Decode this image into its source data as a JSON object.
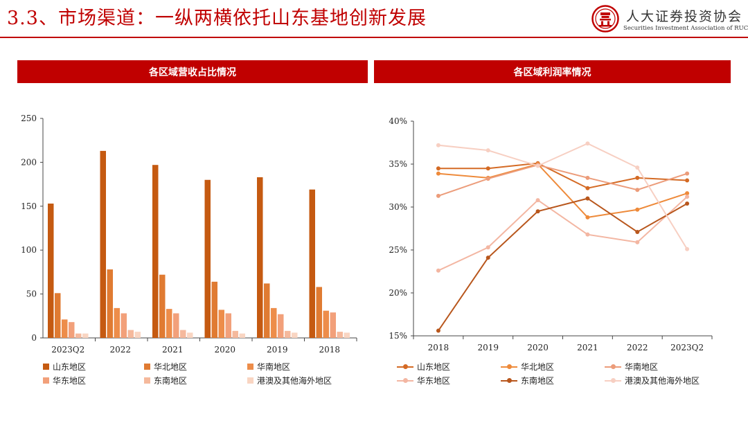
{
  "header": {
    "title": "3.3、市场渠道：一纵两横依托山东基地创新发展",
    "org_cn": "人大证券投资协会",
    "org_en": "Securities Investment Association of RUC",
    "accent": "#c00000"
  },
  "chart_data": [
    {
      "type": "bar",
      "title": "各区域营收占比情况",
      "categories": [
        "2023Q2",
        "2022",
        "2021",
        "2020",
        "2019",
        "2018"
      ],
      "ylim": [
        0,
        250
      ],
      "yticks": [
        0,
        50,
        100,
        150,
        200,
        250
      ],
      "series": [
        {
          "name": "山东地区",
          "color": "#c55a11",
          "values": [
            153,
            213,
            197,
            180,
            183,
            169
          ]
        },
        {
          "name": "华北地区",
          "color": "#e07b32",
          "values": [
            51,
            78,
            72,
            64,
            62,
            58
          ]
        },
        {
          "name": "华南地区",
          "color": "#ed8d4a",
          "values": [
            21,
            34,
            33,
            32,
            34,
            31
          ]
        },
        {
          "name": "华东地区",
          "color": "#f2a07a",
          "values": [
            18,
            28,
            28,
            28,
            27,
            29
          ]
        },
        {
          "name": "东南地区",
          "color": "#f5b99c",
          "values": [
            5,
            9,
            9,
            8,
            8,
            7
          ]
        },
        {
          "name": "港澳及其他海外地区",
          "color": "#f9d5c2",
          "values": [
            5,
            7,
            6,
            5,
            6,
            6
          ]
        }
      ]
    },
    {
      "type": "line",
      "title": "各区域利润率情况",
      "categories": [
        "2018",
        "2019",
        "2020",
        "2021",
        "2022",
        "2023Q2"
      ],
      "ylim": [
        15,
        40
      ],
      "yticks": [
        15,
        20,
        25,
        30,
        35,
        40
      ],
      "ytick_labels": [
        "15%",
        "20%",
        "25%",
        "30%",
        "35%",
        "40%"
      ],
      "series": [
        {
          "name": "山东地区",
          "color": "#d46a24",
          "values": [
            34.5,
            34.5,
            35.1,
            32.2,
            33.4,
            33.1
          ]
        },
        {
          "name": "华北地区",
          "color": "#ee8a3a",
          "values": [
            33.9,
            33.4,
            35.0,
            28.8,
            29.7,
            31.6
          ]
        },
        {
          "name": "华南地区",
          "color": "#ec9c7a",
          "values": [
            31.3,
            33.3,
            34.9,
            33.4,
            32.0,
            33.9
          ]
        },
        {
          "name": "华东地区",
          "color": "#f3b6a2",
          "values": [
            22.6,
            25.3,
            30.8,
            26.8,
            25.9,
            31.2
          ]
        },
        {
          "name": "东南地区",
          "color": "#b8561c",
          "values": [
            15.6,
            24.1,
            29.5,
            31.0,
            27.1,
            30.4
          ]
        },
        {
          "name": "港澳及其他海外地区",
          "color": "#f7cfc2",
          "values": [
            37.2,
            36.6,
            34.8,
            37.4,
            34.6,
            25.1
          ]
        }
      ]
    }
  ]
}
